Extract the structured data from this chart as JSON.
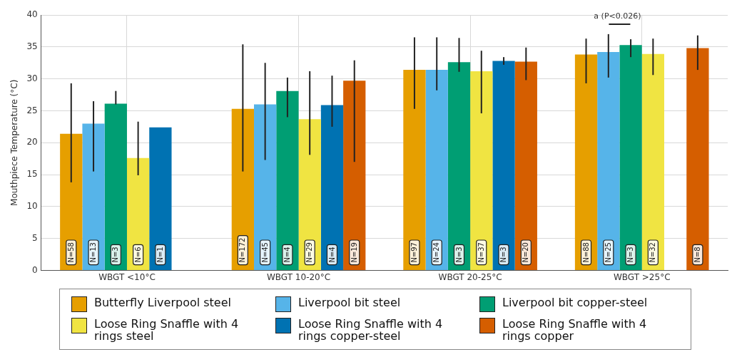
{
  "chart_data": {
    "type": "bar",
    "ylabel": "Mouthpiece Temperature (°C)",
    "categories": [
      "WBGT <10°C",
      "WBGT 10-20°C",
      "WBGT 20-25°C",
      "WBGT >25°C"
    ],
    "series": [
      {
        "name": "Butterfly Liverpool steel",
        "color": "#e69f00",
        "values": [
          21.4,
          25.3,
          31.4,
          33.8
        ],
        "errors": [
          [
            13.8,
            29.3
          ],
          [
            15.5,
            35.4
          ],
          [
            25.3,
            36.5
          ],
          [
            29.3,
            36.3
          ]
        ]
      },
      {
        "name": "Liverpool bit steel",
        "color": "#56b4e9",
        "values": [
          23.0,
          26.0,
          31.4,
          34.2
        ],
        "errors": [
          [
            15.5,
            26.5
          ],
          [
            17.3,
            32.5
          ],
          [
            28.2,
            36.5
          ],
          [
            30.2,
            37.0
          ]
        ]
      },
      {
        "name": "Liverpool bit copper-steel",
        "color": "#009e73",
        "values": [
          26.1,
          28.1,
          32.6,
          35.3
        ],
        "errors": [
          [
            26.0,
            28.1
          ],
          [
            24.0,
            30.2
          ],
          [
            31.1,
            36.4
          ],
          [
            33.4,
            36.2
          ]
        ]
      },
      {
        "name": "Loose Ring Snaffle with 4 rings steel",
        "color": "#f0e442",
        "values": [
          17.6,
          23.7,
          31.2,
          33.9
        ],
        "errors": [
          [
            14.9,
            23.3
          ],
          [
            18.1,
            31.2
          ],
          [
            24.6,
            34.4
          ],
          [
            30.6,
            36.3
          ]
        ]
      },
      {
        "name": "Loose Ring Snaffle with 4 rings copper-steel",
        "color": "#0072b2",
        "values": [
          22.4,
          25.9,
          32.8,
          null
        ],
        "errors": [
          null,
          [
            22.5,
            30.5
          ],
          [
            32.2,
            33.4
          ],
          null
        ]
      },
      {
        "name": "Loose Ring Snaffle with 4 rings copper",
        "color": "#d55e00",
        "values": [
          null,
          29.7,
          32.7,
          34.8
        ],
        "errors": [
          null,
          [
            17.0,
            32.9
          ],
          [
            29.8,
            34.9
          ],
          [
            31.4,
            36.8
          ]
        ]
      }
    ],
    "ylim": [
      0,
      40
    ],
    "yticks": [
      0,
      5,
      10,
      15,
      20,
      25,
      30,
      35,
      40
    ],
    "grid": true,
    "legend": "bottom",
    "annotations": [
      "N=58",
      "N=172",
      "N=97",
      "N=88",
      "N=13",
      "N=45",
      "N=24",
      "N=25",
      "N=3",
      "N=4",
      "N=3",
      "N=3",
      "N=6",
      "N=29",
      "N=37",
      "N=32",
      "N=1",
      "N=4",
      "N=3",
      "N=19",
      "N=20",
      "N=8",
      "a (P<0.026)"
    ]
  }
}
